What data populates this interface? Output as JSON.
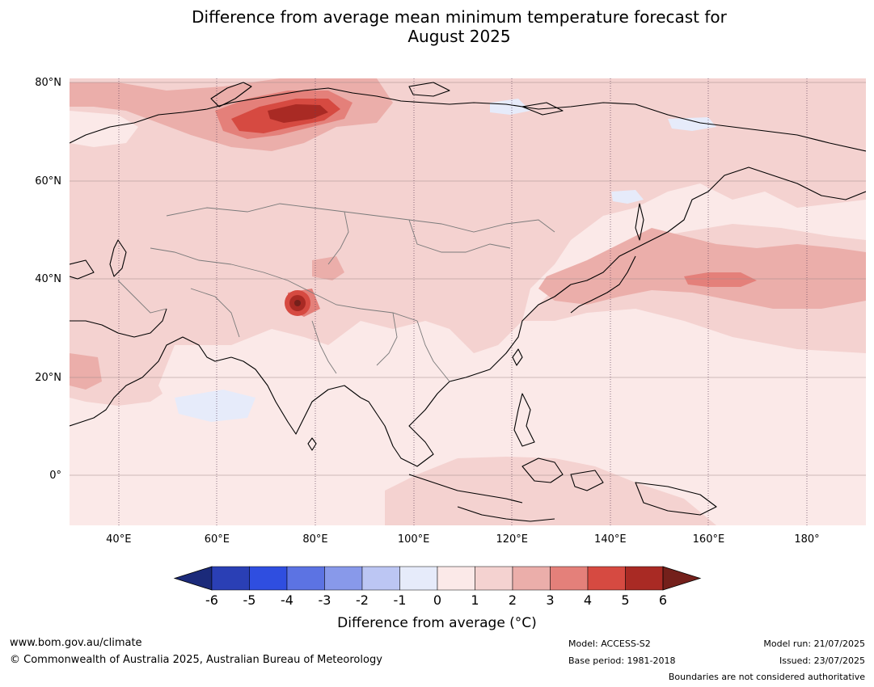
{
  "title": "Difference from average mean minimum temperature forecast for\nAugust 2025",
  "map": {
    "lat_labels": [
      {
        "text": "80°N",
        "lat": 80
      },
      {
        "text": "60°N",
        "lat": 60
      },
      {
        "text": "40°N",
        "lat": 40
      },
      {
        "text": "20°N",
        "lat": 20
      },
      {
        "text": "0°",
        "lat": 0
      }
    ],
    "lon_labels": [
      {
        "text": "40°E",
        "lon": 40
      },
      {
        "text": "60°E",
        "lon": 60
      },
      {
        "text": "80°E",
        "lon": 80
      },
      {
        "text": "100°E",
        "lon": 100
      },
      {
        "text": "120°E",
        "lon": 120
      },
      {
        "text": "140°E",
        "lon": 140
      },
      {
        "text": "160°E",
        "lon": 160
      },
      {
        "text": "180°",
        "lon": 180
      }
    ],
    "lon_range": [
      30,
      192
    ],
    "lat_range": [
      -10,
      81
    ]
  },
  "colorbar": {
    "label": "Difference from average ($^\\circ$C)",
    "label_display": "Difference from average (°C)",
    "ticks": [
      "-6",
      "-5",
      "-4",
      "-3",
      "-2",
      "-1",
      "0",
      "1",
      "2",
      "3",
      "4",
      "5",
      "6"
    ],
    "colors": [
      "#1b2a7a",
      "#2a3fb5",
      "#2f4ee0",
      "#5c73e3",
      "#8899ea",
      "#bcc6f3",
      "#e6ebfa",
      "#fbe9e8",
      "#f4d2d0",
      "#ebaeaa",
      "#e4807a",
      "#d64a41",
      "#a92a24",
      "#74201b"
    ]
  },
  "footer": {
    "url": "www.bom.gov.au/climate",
    "copyright": "© Commonwealth of Australia 2025, Australian Bureau of Meteorology",
    "model": "Model: ACCESS-S2",
    "base_period": "Base period: 1981-2018",
    "model_run": "Model run: 21/07/2025",
    "issued": "Issued: 23/07/2025",
    "disclaimer": "Boundaries are not considered authoritative"
  }
}
